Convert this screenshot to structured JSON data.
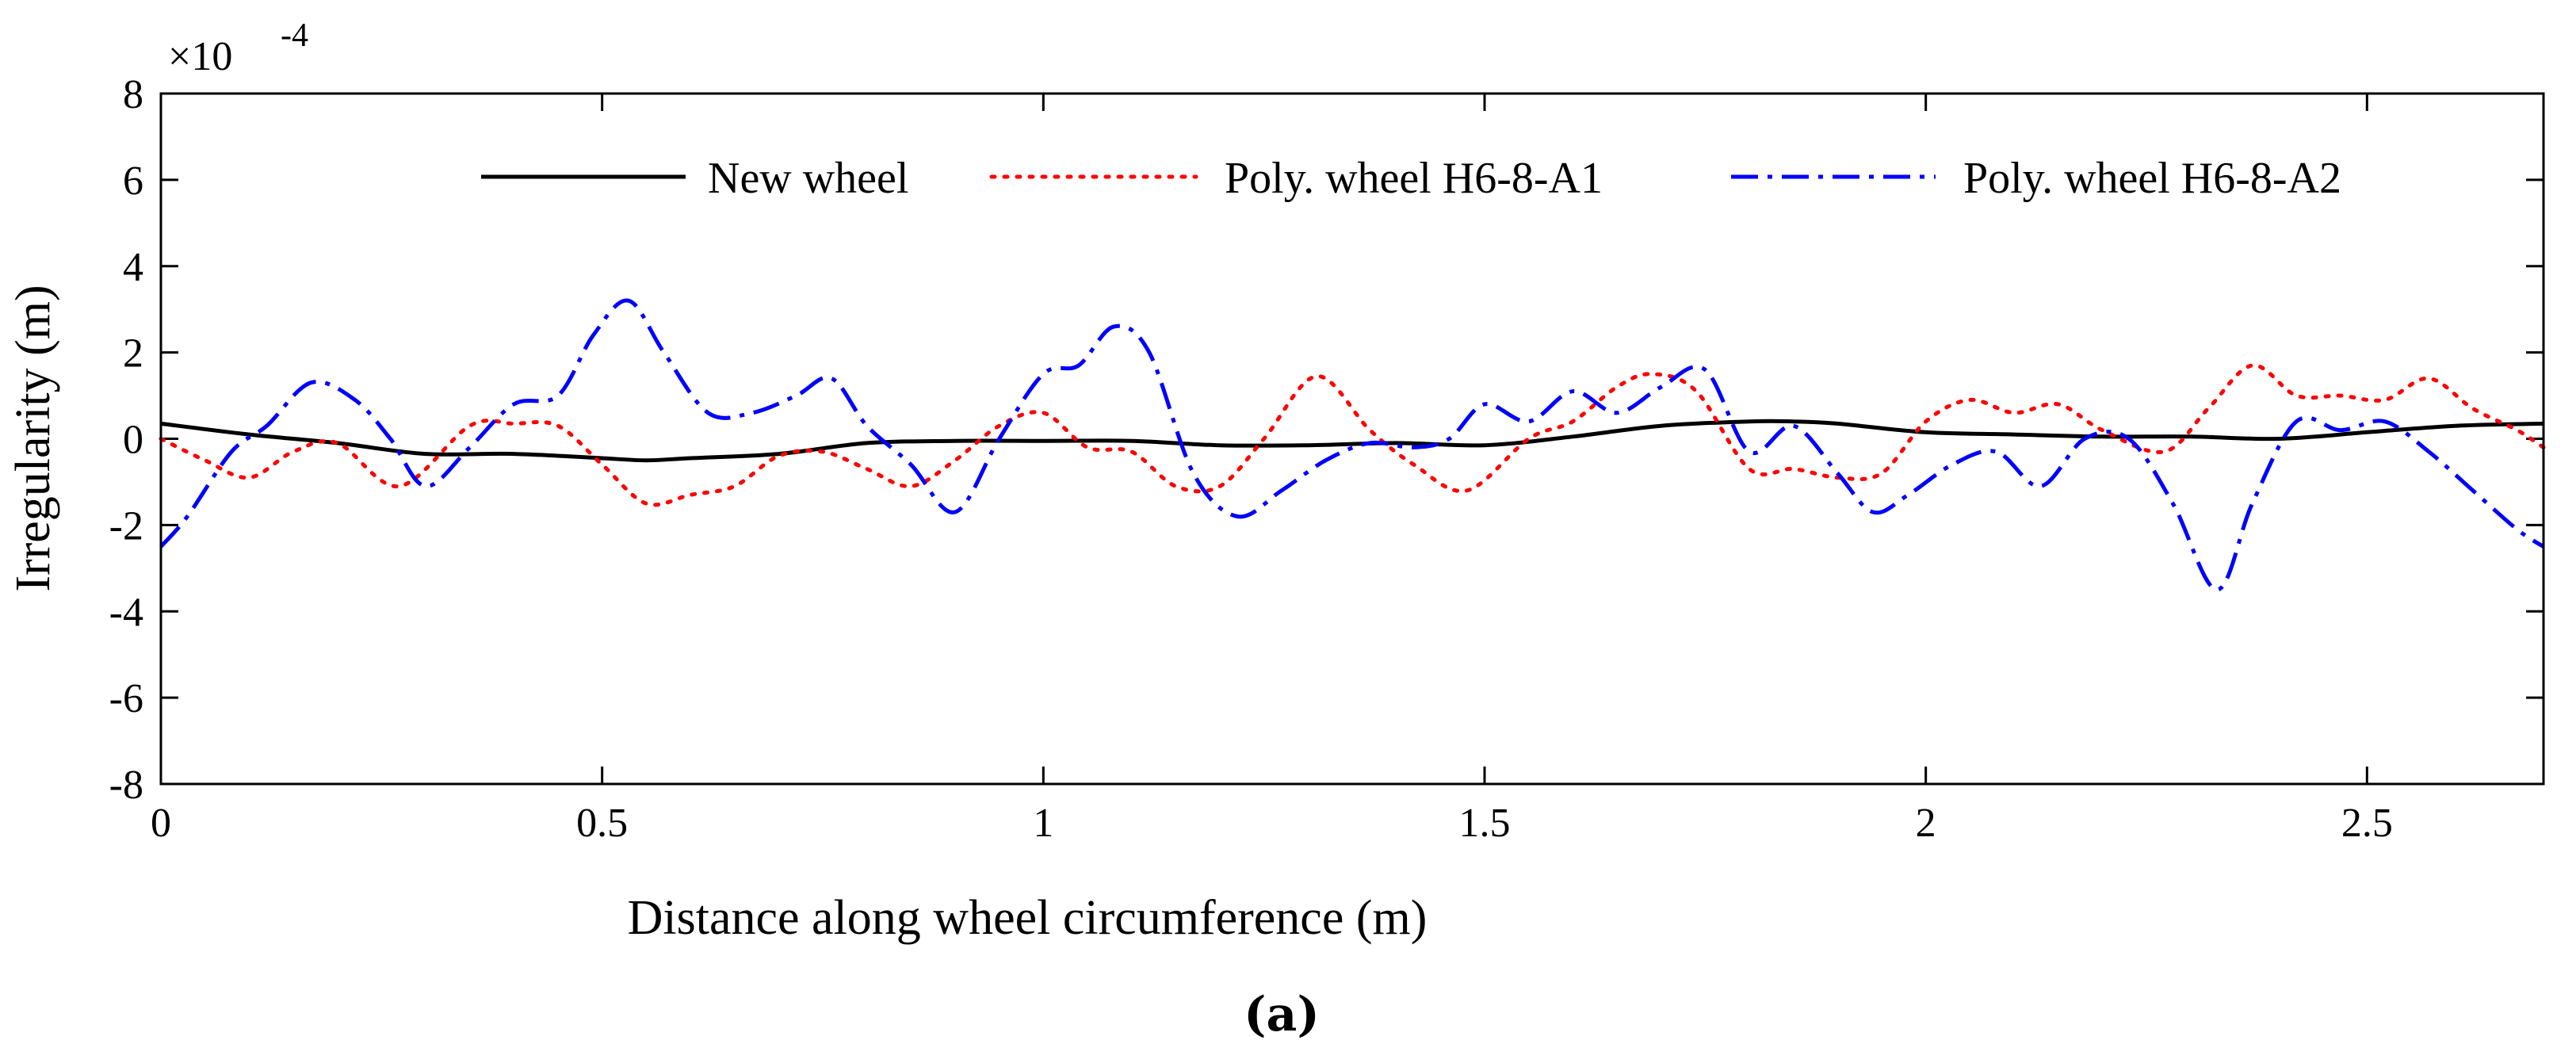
{
  "chart_data": {
    "type": "line",
    "title": "",
    "xlabel": "Distance along wheel circumference (m)",
    "ylabel": "Irregularity (m)",
    "y_multiplier": "×10",
    "y_exponent": "-4",
    "xlim": [
      0,
      2.7
    ],
    "ylim": [
      -8,
      8
    ],
    "x_ticks": [
      0,
      0.5,
      1,
      1.5,
      2,
      2.5
    ],
    "x_tick_labels": [
      "0",
      "0.5",
      "1",
      "1.5",
      "2",
      "2.5"
    ],
    "y_ticks": [
      -8,
      -6,
      -4,
      -2,
      0,
      2,
      4,
      6,
      8
    ],
    "y_tick_labels": [
      "-8",
      "-6",
      "-4",
      "-2",
      "0",
      "2",
      "4",
      "6",
      "8"
    ],
    "legend_position": "top-right",
    "subfigure_label": "(a)",
    "series": [
      {
        "name": "New wheel",
        "color": "#000000",
        "dash": "solid",
        "x": [
          0,
          0.1,
          0.2,
          0.3,
          0.4,
          0.5,
          0.55,
          0.6,
          0.7,
          0.8,
          0.9,
          1.0,
          1.1,
          1.2,
          1.3,
          1.4,
          1.5,
          1.6,
          1.7,
          1.8,
          1.85,
          1.9,
          2.0,
          2.1,
          2.2,
          2.3,
          2.4,
          2.5,
          2.6,
          2.7
        ],
        "values": [
          0.35,
          0.1,
          -0.1,
          -0.35,
          -0.35,
          -0.45,
          -0.5,
          -0.45,
          -0.35,
          -0.1,
          -0.05,
          -0.05,
          -0.05,
          -0.15,
          -0.15,
          -0.1,
          -0.15,
          0.05,
          0.3,
          0.4,
          0.4,
          0.35,
          0.15,
          0.1,
          0.05,
          0.05,
          0.0,
          0.15,
          0.3,
          0.35
        ]
      },
      {
        "name": "Poly. wheel H6-8-A1",
        "color": "#ff0000",
        "dash": "dotted",
        "x": [
          0,
          0.05,
          0.1,
          0.15,
          0.2,
          0.27,
          0.35,
          0.4,
          0.45,
          0.5,
          0.55,
          0.6,
          0.65,
          0.7,
          0.75,
          0.8,
          0.85,
          0.9,
          0.95,
          1.0,
          1.05,
          1.1,
          1.15,
          1.2,
          1.25,
          1.31,
          1.37,
          1.42,
          1.48,
          1.55,
          1.6,
          1.65,
          1.69,
          1.74,
          1.8,
          1.85,
          1.9,
          1.95,
          2.0,
          2.05,
          2.1,
          2.15,
          2.2,
          2.27,
          2.32,
          2.37,
          2.42,
          2.47,
          2.52,
          2.57,
          2.62,
          2.67,
          2.7
        ],
        "values": [
          0.0,
          -0.5,
          -0.9,
          -0.3,
          -0.1,
          -1.1,
          0.3,
          0.35,
          0.3,
          -0.6,
          -1.5,
          -1.3,
          -1.1,
          -0.4,
          -0.3,
          -0.7,
          -1.1,
          -0.5,
          0.3,
          0.6,
          -0.2,
          -0.3,
          -1.1,
          -1.1,
          0.0,
          1.45,
          0.2,
          -0.6,
          -1.2,
          0.0,
          0.4,
          1.2,
          1.5,
          1.1,
          -0.7,
          -0.7,
          -0.9,
          -0.8,
          0.4,
          0.9,
          0.6,
          0.8,
          0.2,
          -0.3,
          0.7,
          1.7,
          1.0,
          1.0,
          0.9,
          1.4,
          0.7,
          0.2,
          -0.2
        ]
      },
      {
        "name": "Poly. wheel H6-8-A2",
        "color": "#0000ff",
        "dash": "dash-dot",
        "x": [
          0,
          0.03,
          0.08,
          0.12,
          0.17,
          0.22,
          0.26,
          0.3,
          0.35,
          0.4,
          0.45,
          0.49,
          0.53,
          0.57,
          0.62,
          0.67,
          0.72,
          0.76,
          0.8,
          0.85,
          0.9,
          0.95,
          1.0,
          1.04,
          1.08,
          1.12,
          1.17,
          1.22,
          1.27,
          1.32,
          1.37,
          1.42,
          1.46,
          1.5,
          1.55,
          1.6,
          1.65,
          1.7,
          1.75,
          1.8,
          1.85,
          1.9,
          1.94,
          1.98,
          2.03,
          2.08,
          2.13,
          2.18,
          2.23,
          2.28,
          2.33,
          2.37,
          2.42,
          2.47,
          2.52,
          2.57,
          2.62,
          2.67,
          2.7
        ],
        "values": [
          -2.5,
          -1.8,
          -0.3,
          0.3,
          1.3,
          0.9,
          0.0,
          -1.1,
          -0.2,
          0.8,
          1.0,
          2.4,
          3.2,
          2.0,
          0.6,
          0.6,
          1.0,
          1.4,
          0.3,
          -0.6,
          -1.7,
          0.0,
          1.5,
          1.7,
          2.6,
          2.0,
          -0.8,
          -1.8,
          -1.2,
          -0.5,
          -0.1,
          -0.2,
          0.0,
          0.8,
          0.4,
          1.1,
          0.6,
          1.2,
          1.6,
          -0.3,
          0.3,
          -0.8,
          -1.7,
          -1.3,
          -0.6,
          -0.3,
          -1.1,
          0.0,
          0.0,
          -1.5,
          -3.5,
          -1.5,
          0.4,
          0.2,
          0.4,
          -0.3,
          -1.2,
          -2.1,
          -2.5
        ]
      }
    ]
  }
}
